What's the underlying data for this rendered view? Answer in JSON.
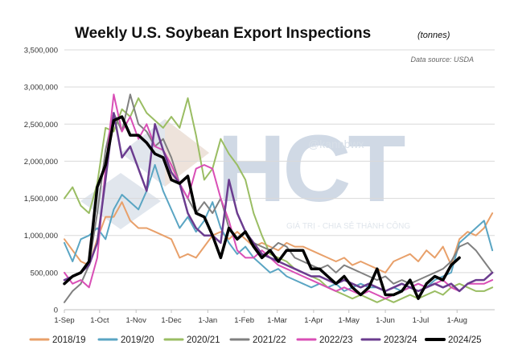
{
  "chart_data": {
    "type": "line",
    "title": "Weekly U.S. Soybean Export Inspections",
    "unit_label": "(tonnes)",
    "source": "Data source: USDA",
    "ylim": [
      0,
      3500000
    ],
    "y_ticks": [
      0,
      500000,
      1000000,
      1500000,
      2000000,
      2500000,
      3000000,
      3500000
    ],
    "y_tick_labels": [
      "0",
      "500,000",
      "1,000,000",
      "1,500,000",
      "2,000,000",
      "2,500,000",
      "3,000,000",
      "3,500,000"
    ],
    "x_ticks": [
      0,
      30,
      61,
      91,
      122,
      153,
      181,
      212,
      242,
      273,
      303,
      334
    ],
    "x_tick_labels": [
      "1-Sep",
      "1-Oct",
      "1-Nov",
      "1-Dec",
      "1-Jan",
      "1-Feb",
      "1-Mar",
      "1-Apr",
      "1-May",
      "1-Jun",
      "1-Jul",
      "1-Aug"
    ],
    "x_unit": "days since 1-Sep",
    "series": [
      {
        "name": "2018/19",
        "color": "#e8a06a",
        "width": 2,
        "x": [
          0,
          7,
          14,
          21,
          28,
          35,
          42,
          49,
          56,
          63,
          70,
          77,
          84,
          91,
          98,
          105,
          112,
          119,
          126,
          133,
          140,
          147,
          154,
          161,
          168,
          175,
          182,
          189,
          196,
          203,
          210,
          217,
          224,
          231,
          238,
          245,
          252,
          259,
          266,
          273,
          280,
          287,
          294,
          301,
          308,
          315,
          322,
          329,
          336,
          343,
          350,
          357,
          364
        ],
        "y": [
          950000,
          800000,
          650000,
          600000,
          950000,
          1250000,
          1250000,
          1450000,
          1200000,
          1100000,
          1100000,
          1050000,
          1000000,
          950000,
          700000,
          750000,
          700000,
          850000,
          1000000,
          1050000,
          950000,
          1050000,
          950000,
          850000,
          900000,
          850000,
          800000,
          900000,
          850000,
          850000,
          800000,
          750000,
          700000,
          650000,
          700000,
          600000,
          650000,
          600000,
          550000,
          500000,
          650000,
          700000,
          750000,
          650000,
          800000,
          700000,
          850000,
          600000,
          950000,
          1050000,
          1000000,
          1100000,
          1300000
        ]
      },
      {
        "name": "2019/20",
        "color": "#5aa5c3",
        "width": 2,
        "x": [
          0,
          7,
          14,
          21,
          28,
          35,
          42,
          49,
          56,
          63,
          70,
          77,
          84,
          91,
          98,
          105,
          112,
          119,
          126,
          133,
          140,
          147,
          154,
          161,
          168,
          175,
          182,
          189,
          196,
          203,
          210,
          217,
          224,
          231,
          238,
          245,
          252,
          259,
          266,
          273,
          280,
          287,
          294,
          301,
          308,
          315,
          322,
          329,
          336,
          343,
          350,
          357,
          364
        ],
        "y": [
          900000,
          650000,
          950000,
          1000000,
          1100000,
          950000,
          1350000,
          1550000,
          1450000,
          1350000,
          1600000,
          1950000,
          1600000,
          1350000,
          1100000,
          1250000,
          1050000,
          1200000,
          1450000,
          1100000,
          900000,
          750000,
          850000,
          700000,
          600000,
          500000,
          550000,
          450000,
          400000,
          350000,
          300000,
          350000,
          300000,
          350000,
          250000,
          300000,
          350000,
          300000,
          300000,
          250000,
          300000,
          250000,
          300000,
          350000,
          300000,
          400000,
          450000,
          500000,
          900000,
          1000000,
          1100000,
          1200000,
          800000
        ]
      },
      {
        "name": "2020/21",
        "color": "#9abd63",
        "width": 2,
        "x": [
          0,
          7,
          14,
          21,
          28,
          35,
          42,
          49,
          56,
          63,
          70,
          77,
          84,
          91,
          98,
          105,
          112,
          119,
          126,
          133,
          140,
          147,
          154,
          161,
          168,
          175,
          182,
          189,
          196,
          203,
          210,
          217,
          224,
          231,
          238,
          245,
          252,
          259,
          266,
          273,
          280,
          287,
          294,
          301,
          308,
          315,
          322,
          329,
          336,
          343,
          350,
          357,
          364
        ],
        "y": [
          1500000,
          1650000,
          1400000,
          1300000,
          1700000,
          2450000,
          2400000,
          2700000,
          2600000,
          2850000,
          2650000,
          2550000,
          2450000,
          2600000,
          2450000,
          2850000,
          2350000,
          1750000,
          1900000,
          2300000,
          2100000,
          1950000,
          1750000,
          1300000,
          1000000,
          750000,
          700000,
          650000,
          550000,
          500000,
          450000,
          400000,
          300000,
          250000,
          200000,
          150000,
          200000,
          150000,
          100000,
          150000,
          100000,
          150000,
          200000,
          150000,
          200000,
          250000,
          200000,
          300000,
          350000,
          300000,
          250000,
          250000,
          300000
        ]
      },
      {
        "name": "2021/22",
        "color": "#808080",
        "width": 2,
        "x": [
          0,
          7,
          14,
          21,
          28,
          35,
          42,
          49,
          56,
          63,
          70,
          77,
          84,
          91,
          98,
          105,
          112,
          119,
          126,
          133,
          140,
          147,
          154,
          161,
          168,
          175,
          182,
          189,
          196,
          203,
          210,
          217,
          224,
          231,
          238,
          245,
          252,
          259,
          266,
          273,
          280,
          287,
          294,
          301,
          308,
          315,
          322,
          329,
          336,
          343,
          350,
          357,
          364
        ],
        "y": [
          100000,
          250000,
          350000,
          600000,
          1300000,
          2150000,
          2650000,
          2400000,
          2900000,
          2500000,
          2400000,
          2200000,
          2300000,
          2050000,
          1700000,
          1500000,
          1300000,
          1450000,
          1300000,
          1500000,
          1100000,
          950000,
          1050000,
          900000,
          850000,
          800000,
          900000,
          850000,
          700000,
          650000,
          600000,
          550000,
          600000,
          500000,
          600000,
          550000,
          500000,
          450000,
          400000,
          450000,
          350000,
          400000,
          350000,
          400000,
          450000,
          500000,
          550000,
          650000,
          850000,
          900000,
          800000,
          650000,
          500000
        ]
      },
      {
        "name": "2022/23",
        "color": "#d94fb6",
        "width": 2,
        "x": [
          0,
          7,
          14,
          21,
          28,
          35,
          42,
          49,
          56,
          63,
          70,
          77,
          84,
          91,
          98,
          105,
          112,
          119,
          126,
          133,
          140,
          147,
          154,
          161,
          168,
          175,
          182,
          189,
          196,
          203,
          210,
          217,
          224,
          231,
          238,
          245,
          252,
          259,
          266,
          273,
          280,
          287,
          294,
          301,
          308,
          315,
          322,
          329,
          336,
          343,
          350,
          357,
          364
        ],
        "y": [
          500000,
          350000,
          400000,
          300000,
          700000,
          1900000,
          2900000,
          2400000,
          2600000,
          2300000,
          2500000,
          2200000,
          2150000,
          1950000,
          1700000,
          1500000,
          1900000,
          1950000,
          1900000,
          1500000,
          1200000,
          800000,
          700000,
          700000,
          800000,
          700000,
          600000,
          550000,
          500000,
          450000,
          400000,
          350000,
          300000,
          250000,
          300000,
          250000,
          200000,
          250000,
          200000,
          150000,
          200000,
          250000,
          300000,
          350000,
          300000,
          350000,
          400000,
          300000,
          250000,
          350000,
          350000,
          350000,
          400000
        ]
      },
      {
        "name": "2023/24",
        "color": "#6b3c8f",
        "width": 2.5,
        "x": [
          0,
          7,
          14,
          21,
          28,
          35,
          42,
          49,
          56,
          63,
          70,
          77,
          84,
          91,
          98,
          105,
          112,
          119,
          126,
          133,
          140,
          147,
          154,
          161,
          168,
          175,
          182,
          189,
          196,
          203,
          210,
          217,
          224,
          231,
          238,
          245,
          252,
          259,
          266,
          273,
          280,
          287,
          294,
          301,
          308,
          315,
          322,
          329,
          336,
          343,
          350,
          357,
          364
        ],
        "y": [
          400000,
          450000,
          500000,
          600000,
          900000,
          1750000,
          2650000,
          2050000,
          2200000,
          1900000,
          1600000,
          2500000,
          2150000,
          1850000,
          1700000,
          1300000,
          1100000,
          1000000,
          1000000,
          900000,
          1750000,
          1300000,
          1050000,
          900000,
          750000,
          700000,
          650000,
          600000,
          550000,
          500000,
          450000,
          450000,
          400000,
          350000,
          400000,
          350000,
          300000,
          350000,
          300000,
          250000,
          300000,
          350000,
          300000,
          250000,
          300000,
          350000,
          300000,
          350000,
          250000,
          350000,
          400000,
          400000,
          500000
        ]
      },
      {
        "name": "2024/25",
        "color": "#000000",
        "width": 3.5,
        "x": [
          0,
          7,
          14,
          21,
          28,
          35,
          42,
          49,
          56,
          63,
          70,
          77,
          84,
          91,
          98,
          105,
          112,
          119,
          126,
          133,
          140,
          147,
          154,
          161,
          168,
          175,
          182,
          189,
          196,
          203,
          210,
          217,
          224,
          231,
          238,
          245,
          252,
          259,
          266,
          273,
          280,
          287,
          294,
          301,
          308,
          315,
          322,
          329,
          336
        ],
        "y": [
          350000,
          450000,
          500000,
          650000,
          1650000,
          1950000,
          2550000,
          2600000,
          2350000,
          2350000,
          2250000,
          2100000,
          2050000,
          1750000,
          1700000,
          1800000,
          1300000,
          1250000,
          1000000,
          700000,
          1100000,
          950000,
          1050000,
          850000,
          700000,
          800000,
          650000,
          800000,
          800000,
          800000,
          550000,
          550000,
          450000,
          350000,
          450000,
          300000,
          200000,
          300000,
          550000,
          200000,
          200000,
          250000,
          400000,
          150000,
          350000,
          450000,
          400000,
          600000,
          700000
        ]
      }
    ]
  },
  "watermark": {
    "handle": "@kannbwx",
    "logo": "HCT",
    "tagline": "GIÁ TRỊ - CHIA SẺ THÀNH CÔNG"
  }
}
